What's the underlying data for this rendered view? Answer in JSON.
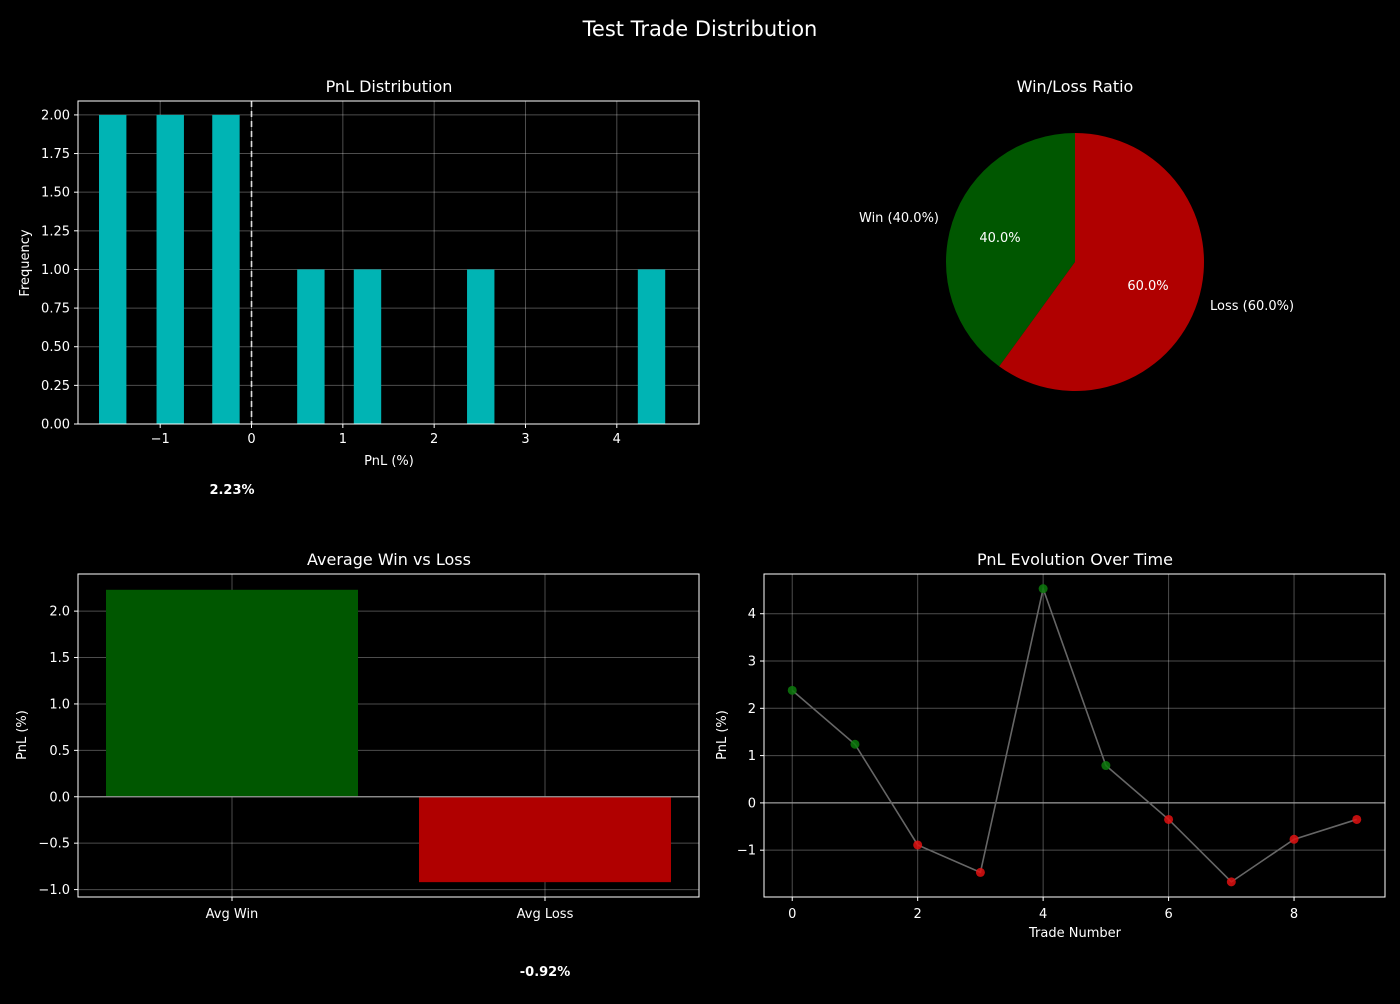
{
  "figure": {
    "title": "Test Trade Distribution",
    "background": "#000000"
  },
  "colors": {
    "hist": "#00b4b4",
    "win": "#005700",
    "loss": "#b00000",
    "line": "#666666",
    "win_point": "#0c7a0c",
    "loss_point": "#e01010",
    "grid": "#ffffff",
    "zero_line": "#999999"
  },
  "chart_data": [
    {
      "type": "bar",
      "title": "PnL Distribution",
      "xlabel": "PnL (%)",
      "ylabel": "Frequency",
      "xlim": [
        -1.9,
        4.9
      ],
      "ylim": [
        0,
        2.09
      ],
      "xticks": [
        -1,
        0,
        1,
        2,
        3,
        4
      ],
      "xtick_labels": [
        "−1",
        "0",
        "1",
        "2",
        "3",
        "4"
      ],
      "yticks": [
        0,
        0.25,
        0.5,
        0.75,
        1.0,
        1.25,
        1.5,
        1.75,
        2.0
      ],
      "ytick_labels": [
        "0.00",
        "0.25",
        "0.50",
        "0.75",
        "1.00",
        "1.25",
        "1.50",
        "1.75",
        "2.00"
      ],
      "bins": [
        {
          "x0": -1.67,
          "x1": -1.37,
          "count": 2
        },
        {
          "x0": -1.04,
          "x1": -0.74,
          "count": 2
        },
        {
          "x0": -0.43,
          "x1": -0.13,
          "count": 2
        },
        {
          "x0": 0.5,
          "x1": 0.8,
          "count": 1
        },
        {
          "x0": 1.12,
          "x1": 1.42,
          "count": 1
        },
        {
          "x0": 2.36,
          "x1": 2.66,
          "count": 1
        },
        {
          "x0": 4.23,
          "x1": 4.53,
          "count": 1
        }
      ],
      "vline": 0,
      "grid": true,
      "annotation": "2.23%"
    },
    {
      "type": "pie",
      "title": "Win/Loss Ratio",
      "slices": [
        {
          "label": "Win (40.0%)",
          "pct_label": "40.0%",
          "value": 40.0,
          "color": "#005700"
        },
        {
          "label": "Loss (60.0%)",
          "pct_label": "60.0%",
          "value": 60.0,
          "color": "#b00000"
        }
      ]
    },
    {
      "type": "bar",
      "title": "Average Win vs Loss",
      "ylabel": "PnL (%)",
      "categories": [
        "Avg Win",
        "Avg Loss"
      ],
      "values": [
        2.23,
        -0.92
      ],
      "ylim": [
        -1.08,
        2.4
      ],
      "yticks": [
        -1.0,
        -0.5,
        0.0,
        0.5,
        1.0,
        1.5,
        2.0
      ],
      "ytick_labels": [
        "−1.0",
        "−0.5",
        "0.0",
        "0.5",
        "1.0",
        "1.5",
        "2.0"
      ],
      "grid": true,
      "annotation": "-0.92%"
    },
    {
      "type": "line",
      "title": "PnL Evolution Over Time",
      "xlabel": "Trade Number",
      "ylabel": "PnL (%)",
      "x": [
        0,
        1,
        2,
        3,
        4,
        5,
        6,
        7,
        8,
        9
      ],
      "y": [
        2.38,
        1.24,
        -0.89,
        -1.47,
        4.53,
        0.79,
        -0.35,
        -1.67,
        -0.77,
        -0.35
      ],
      "xlim": [
        -0.45,
        9.45
      ],
      "ylim": [
        -1.99,
        4.84
      ],
      "xticks": [
        0,
        2,
        4,
        6,
        8
      ],
      "xtick_labels": [
        "0",
        "2",
        "4",
        "6",
        "8"
      ],
      "yticks": [
        -1,
        0,
        1,
        2,
        3,
        4
      ],
      "ytick_labels": [
        "−1",
        "0",
        "1",
        "2",
        "3",
        "4"
      ],
      "hline": 0,
      "grid": true
    }
  ]
}
